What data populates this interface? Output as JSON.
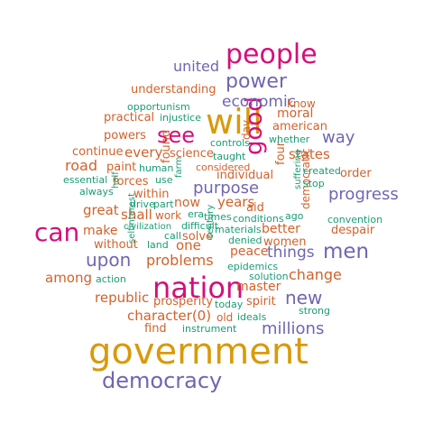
{
  "palette": {
    "gold": "#d99a0a",
    "orange": "#d1622b",
    "magenta": "#d40f7a",
    "purple": "#7066b0",
    "teal": "#1a9c74"
  },
  "words": [
    {
      "text": "government",
      "color": "#d99a0a"
    },
    {
      "text": "nation",
      "color": "#d40f7a"
    },
    {
      "text": "will",
      "color": "#d99a0a"
    },
    {
      "text": "people",
      "color": "#d40f7a"
    },
    {
      "text": "can",
      "color": "#d40f7a"
    },
    {
      "text": "democracy",
      "color": "#7066b0"
    },
    {
      "text": "good",
      "color": "#d40f7a"
    },
    {
      "text": "see",
      "color": "#d40f7a"
    },
    {
      "text": "power",
      "color": "#7066b0"
    },
    {
      "text": "men",
      "color": "#7066b0"
    },
    {
      "text": "new",
      "color": "#7066b0"
    },
    {
      "text": "upon",
      "color": "#7066b0"
    },
    {
      "text": "way",
      "color": "#7066b0"
    },
    {
      "text": "progress",
      "color": "#7066b0"
    },
    {
      "text": "united",
      "color": "#7066b0"
    },
    {
      "text": "economic",
      "color": "#7066b0"
    },
    {
      "text": "purpose",
      "color": "#7066b0"
    },
    {
      "text": "millions",
      "color": "#7066b0"
    },
    {
      "text": "things",
      "color": "#7066b0"
    },
    {
      "text": "change",
      "color": "#d1622b"
    },
    {
      "text": "problems",
      "color": "#d1622b"
    },
    {
      "text": "character(0)",
      "color": "#d1622b"
    },
    {
      "text": "understanding",
      "color": "#d1622b"
    },
    {
      "text": "moral",
      "color": "#d1622b"
    },
    {
      "text": "american",
      "color": "#d1622b"
    },
    {
      "text": "know",
      "color": "#d1622b"
    },
    {
      "text": "practical",
      "color": "#d1622b"
    },
    {
      "text": "powers",
      "color": "#d1622b"
    },
    {
      "text": "continue",
      "color": "#d1622b"
    },
    {
      "text": "every",
      "color": "#d1622b"
    },
    {
      "text": "road",
      "color": "#d1622b"
    },
    {
      "text": "paint",
      "color": "#d1622b"
    },
    {
      "text": "forces",
      "color": "#d1622b"
    },
    {
      "text": "within",
      "color": "#d1622b"
    },
    {
      "text": "great",
      "color": "#d1622b"
    },
    {
      "text": "shall",
      "color": "#d1622b"
    },
    {
      "text": "work",
      "color": "#d1622b"
    },
    {
      "text": "make",
      "color": "#d1622b"
    },
    {
      "text": "without",
      "color": "#d1622b"
    },
    {
      "text": "among",
      "color": "#d1622b"
    },
    {
      "text": "republic",
      "color": "#d1622b"
    },
    {
      "text": "prosperity",
      "color": "#d1622b"
    },
    {
      "text": "find",
      "color": "#d1622b"
    },
    {
      "text": "spirit",
      "color": "#d1622b"
    },
    {
      "text": "old",
      "color": "#d1622b"
    },
    {
      "text": "one",
      "color": "#d1622b"
    },
    {
      "text": "solve",
      "color": "#d1622b"
    },
    {
      "text": "years",
      "color": "#d1622b"
    },
    {
      "text": "individual",
      "color": "#d1622b"
    },
    {
      "text": "science",
      "color": "#d1622b"
    },
    {
      "text": "states",
      "color": "#d1622b"
    },
    {
      "text": "order",
      "color": "#d1622b"
    },
    {
      "text": "despair",
      "color": "#d1622b"
    },
    {
      "text": "better",
      "color": "#d1622b"
    },
    {
      "text": "peace",
      "color": "#d1622b"
    },
    {
      "text": "women",
      "color": "#d1622b"
    },
    {
      "text": "master",
      "color": "#d1622b"
    },
    {
      "text": "aid",
      "color": "#d1622b"
    },
    {
      "text": "now",
      "color": "#d1622b"
    },
    {
      "text": "day",
      "color": "#d1622b"
    },
    {
      "text": "four",
      "color": "#d1622b"
    },
    {
      "text": "found",
      "color": "#d1622b"
    },
    {
      "text": "democratic",
      "color": "#d1622b"
    },
    {
      "text": "considered",
      "color": "#d1622b"
    },
    {
      "text": "opportunism",
      "color": "#1a9c74"
    },
    {
      "text": "injustice",
      "color": "#1a9c74"
    },
    {
      "text": "controls",
      "color": "#1a9c74"
    },
    {
      "text": "whether",
      "color": "#1a9c74"
    },
    {
      "text": "essential",
      "color": "#1a9c74"
    },
    {
      "text": "use",
      "color": "#1a9c74"
    },
    {
      "text": "always",
      "color": "#1a9c74"
    },
    {
      "text": "human",
      "color": "#1a9c74"
    },
    {
      "text": "half",
      "color": "#1a9c74"
    },
    {
      "text": "drive",
      "color": "#1a9c74"
    },
    {
      "text": "part",
      "color": "#1a9c74"
    },
    {
      "text": "farm",
      "color": "#1a9c74"
    },
    {
      "text": "era",
      "color": "#1a9c74"
    },
    {
      "text": "times",
      "color": "#1a9c74"
    },
    {
      "text": "conditions",
      "color": "#1a9c74"
    },
    {
      "text": "ago",
      "color": "#1a9c74"
    },
    {
      "text": "civilization",
      "color": "#1a9c74"
    },
    {
      "text": "difficult",
      "color": "#1a9c74"
    },
    {
      "text": "materials",
      "color": "#1a9c74"
    },
    {
      "text": "call",
      "color": "#1a9c74"
    },
    {
      "text": "land",
      "color": "#1a9c74"
    },
    {
      "text": "denied",
      "color": "#1a9c74"
    },
    {
      "text": "epidemics",
      "color": "#1a9c74"
    },
    {
      "text": "century",
      "color": "#1a9c74"
    },
    {
      "text": "selfinterest",
      "color": "#1a9c74"
    },
    {
      "text": "action",
      "color": "#1a9c74"
    },
    {
      "text": "solution",
      "color": "#1a9c74"
    },
    {
      "text": "today",
      "color": "#1a9c74"
    },
    {
      "text": "ideals",
      "color": "#1a9c74"
    },
    {
      "text": "strong",
      "color": "#1a9c74"
    },
    {
      "text": "instrument",
      "color": "#1a9c74"
    },
    {
      "text": "created",
      "color": "#1a9c74"
    },
    {
      "text": "stop",
      "color": "#1a9c74"
    },
    {
      "text": "convention",
      "color": "#1a9c74"
    },
    {
      "text": "suffering",
      "color": "#1a9c74"
    },
    {
      "text": "taught",
      "color": "#1a9c74"
    }
  ]
}
